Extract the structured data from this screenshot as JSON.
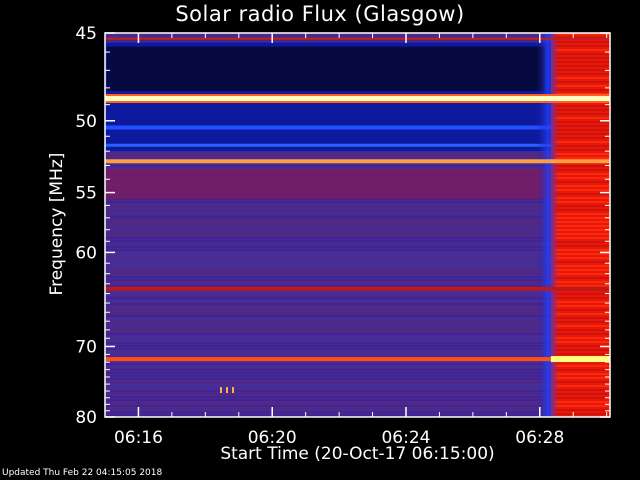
{
  "chart_data": {
    "type": "heatmap",
    "title": "Solar radio Flux (Glasgow)",
    "xlabel": "Start Time (20-Oct-17 06:15:00)",
    "ylabel": "Frequency [MHz]",
    "x_ticks": [
      "06:16",
      "06:20",
      "06:24",
      "06:28"
    ],
    "y_ticks": [
      45,
      50,
      55,
      60,
      70,
      80
    ],
    "xlim_minutes_after_06_15": [
      0,
      15.1
    ],
    "ylim_MHz": [
      80,
      45
    ],
    "y_scale": "reciprocal",
    "colormap": [
      "#000000",
      "#1010a0",
      "#3a2a9a",
      "#5a2080",
      "#b01010",
      "#ff2000",
      "#ff8000",
      "#ffffa0"
    ],
    "background_level": "purple",
    "event": {
      "start_time": "06:28:20",
      "description_level": "red-bright broadband emission"
    },
    "bright_lines_MHz": [
      48.6,
      52.7,
      63.5,
      71.6
    ],
    "blue_band_MHz": [
      45.5,
      52.0
    ]
  },
  "footer": "Updated Thu Feb 22 04:15:05 2018",
  "colors": {
    "background": "#000000",
    "text": "#ffffff"
  }
}
